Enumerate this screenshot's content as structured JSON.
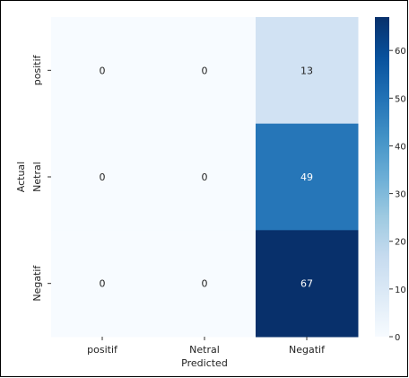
{
  "chart_data": {
    "type": "heatmap",
    "xlabel": "Predicted",
    "ylabel": "Actual",
    "x_categories": [
      "positif",
      "Netral",
      "Negatif"
    ],
    "y_categories": [
      "positif",
      "Netral",
      "Negatif"
    ],
    "values": [
      [
        0,
        0,
        13
      ],
      [
        0,
        0,
        49
      ],
      [
        0,
        0,
        67
      ]
    ],
    "colorbar": {
      "range": [
        0,
        67
      ],
      "ticks": [
        0,
        10,
        20,
        30,
        40,
        50,
        60
      ],
      "tick_labels": [
        "0",
        "10",
        "20",
        "30",
        "40",
        "50",
        "60"
      ],
      "colormap": "Blues",
      "low_color": "#f7fbff",
      "high_color": "#08306b"
    },
    "annotations": true
  }
}
